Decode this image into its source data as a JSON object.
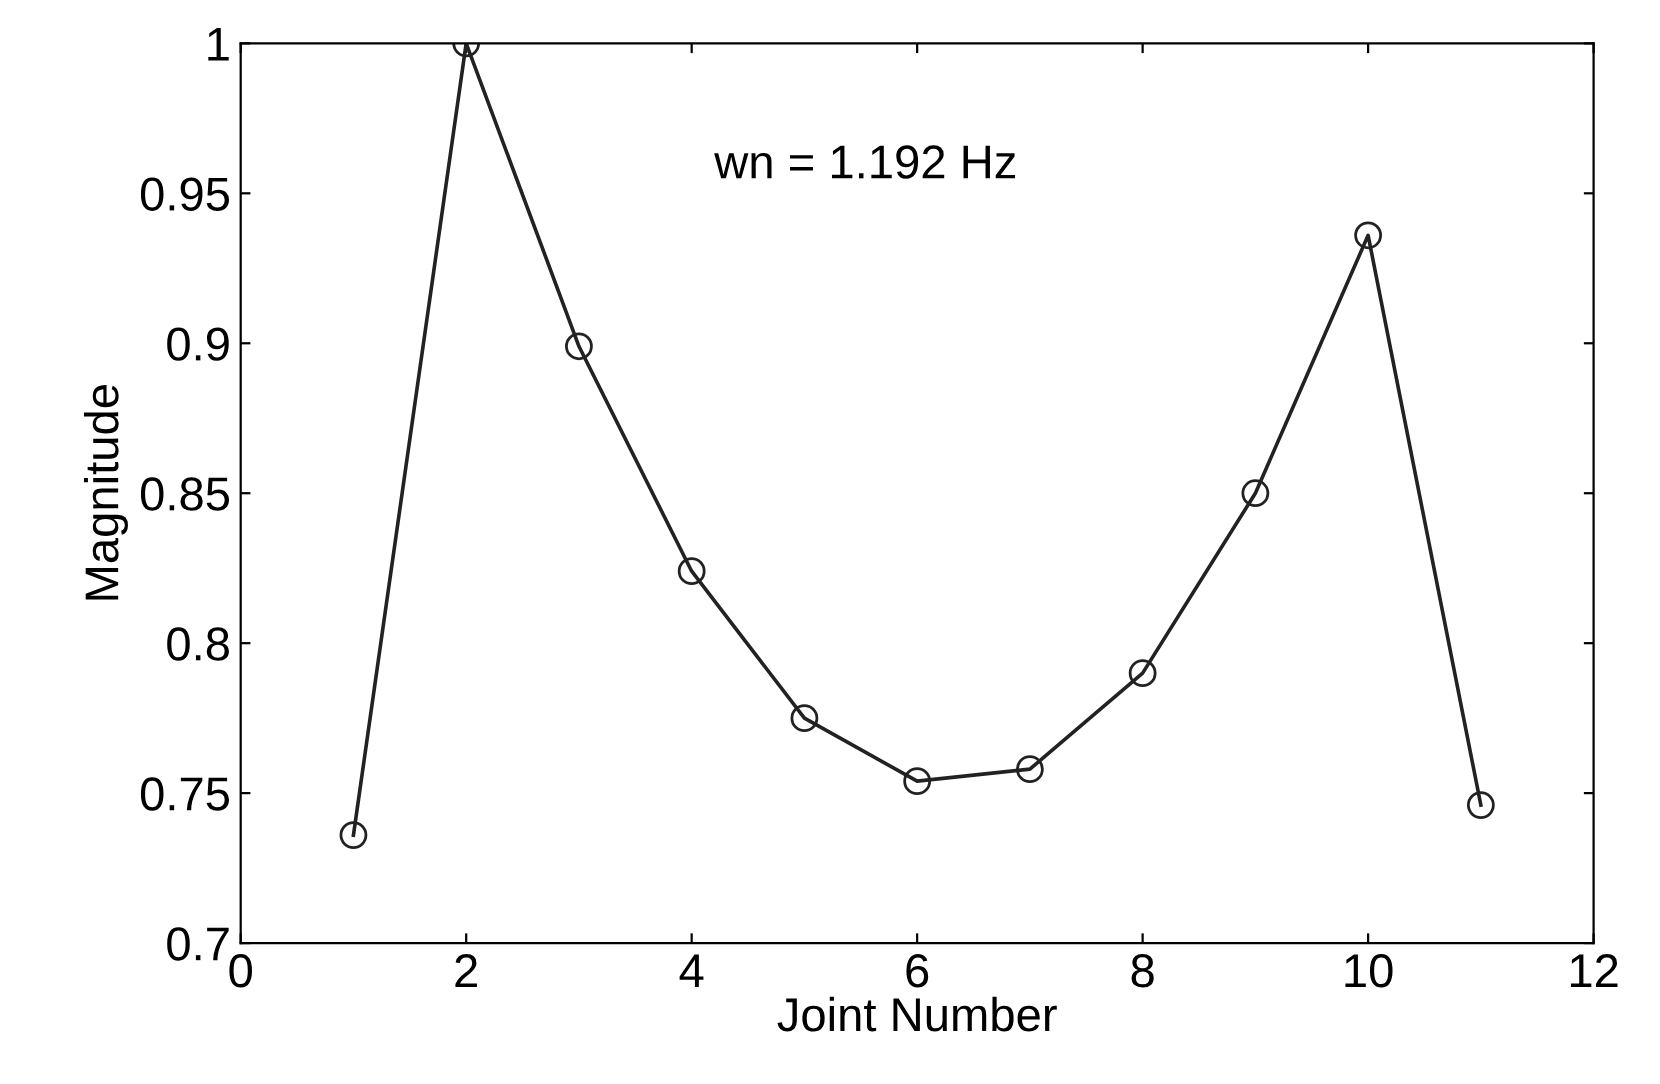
{
  "chart_data": {
    "type": "line",
    "xlabel": "Joint Number",
    "ylabel": "Magnitude",
    "x": [
      1,
      2,
      3,
      4,
      5,
      6,
      7,
      8,
      9,
      10,
      11
    ],
    "series": [
      {
        "color": "#222222",
        "values": [
          0.736,
          1.0,
          0.899,
          0.824,
          0.775,
          0.754,
          0.758,
          0.79,
          0.85,
          0.936,
          0.746
        ]
      }
    ],
    "marker": "circle",
    "line_style": "solid",
    "xlim": [
      0,
      12
    ],
    "xticks": [
      0,
      2,
      4,
      6,
      8,
      10,
      12
    ],
    "ylim": [
      0.7,
      1
    ],
    "yticks": [
      0.7,
      0.75,
      0.8,
      0.85,
      0.9,
      0.95,
      1
    ],
    "annotations": [
      "wn = 1.192 Hz"
    ],
    "grid": false,
    "legend": false
  }
}
